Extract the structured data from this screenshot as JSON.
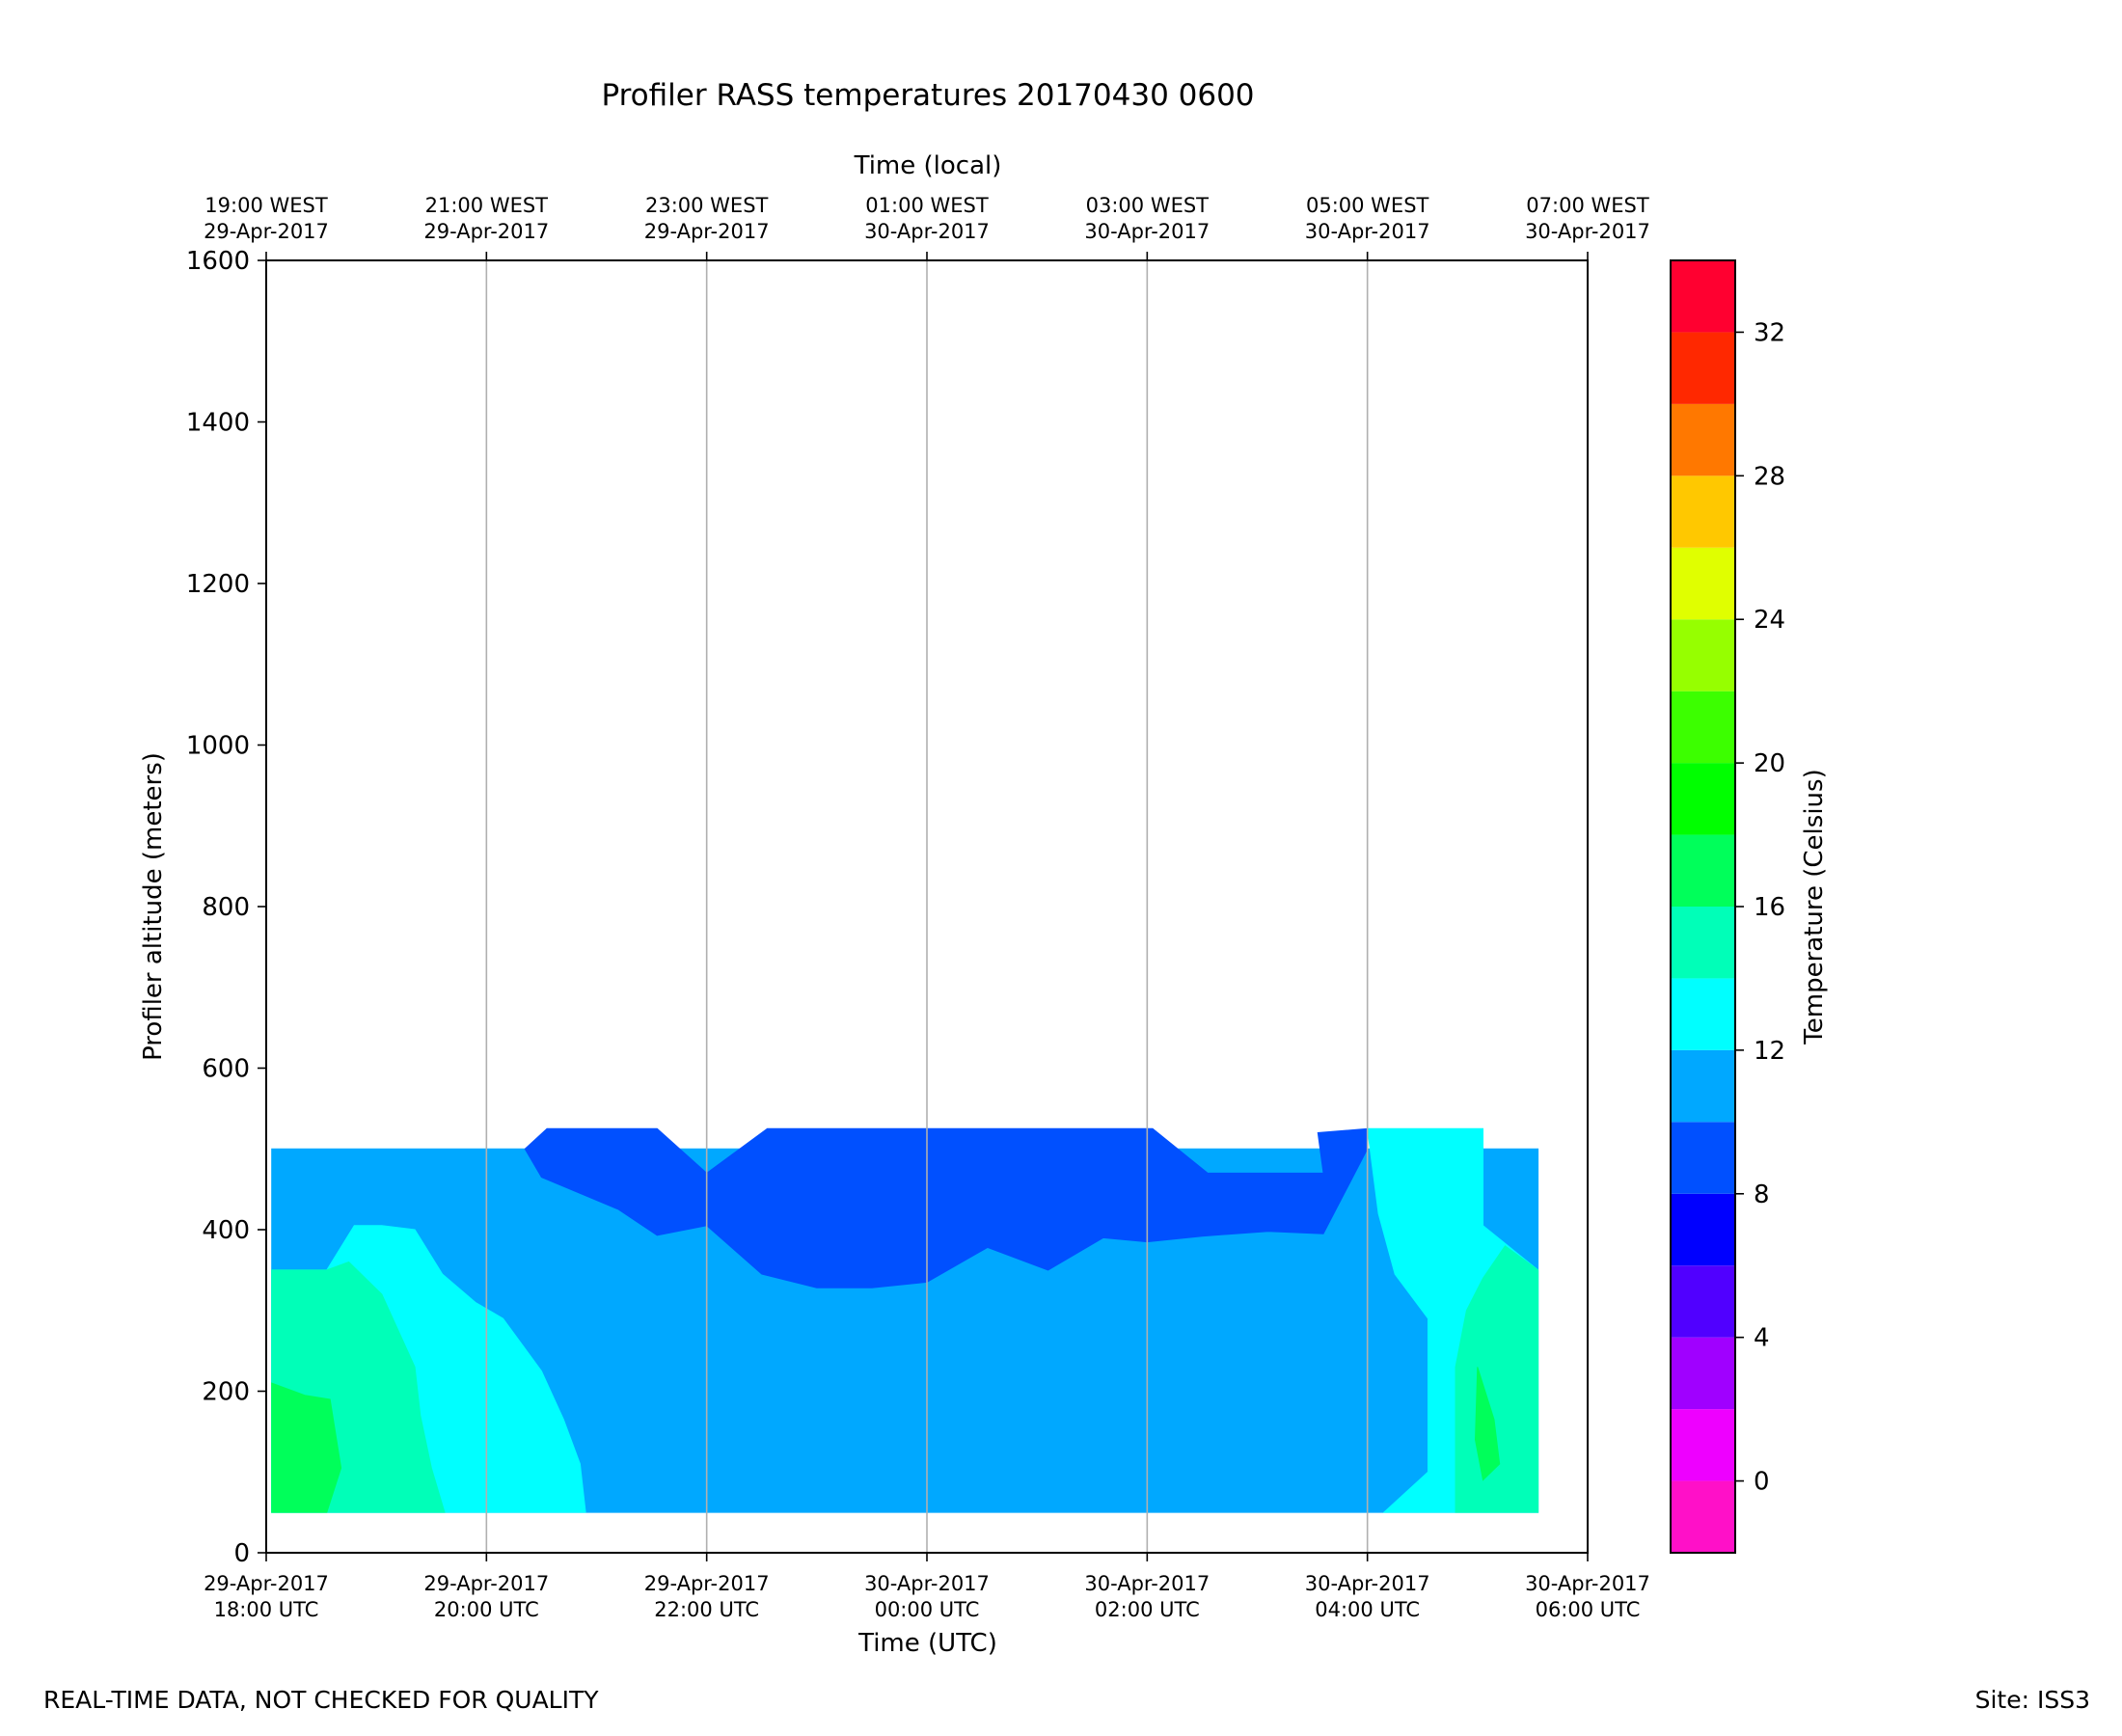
{
  "chart_data": {
    "type": "heatmap",
    "title": "Profiler RASS temperatures 20170430 0600",
    "xlabel": "Time (UTC)",
    "x2label": "Time (local)",
    "ylabel": "Profiler altitude (meters)",
    "grid": "vertical lines at x ticks",
    "x_range_hours": [
      0,
      12
    ],
    "ylim": [
      0,
      1600
    ],
    "x_ticks": [
      {
        "hour": 0,
        "line1": "29-Apr-2017",
        "line2": "18:00 UTC"
      },
      {
        "hour": 2,
        "line1": "29-Apr-2017",
        "line2": "20:00 UTC"
      },
      {
        "hour": 4,
        "line1": "29-Apr-2017",
        "line2": "22:00 UTC"
      },
      {
        "hour": 6,
        "line1": "30-Apr-2017",
        "line2": "00:00 UTC"
      },
      {
        "hour": 8,
        "line1": "30-Apr-2017",
        "line2": "02:00 UTC"
      },
      {
        "hour": 10,
        "line1": "30-Apr-2017",
        "line2": "04:00 UTC"
      },
      {
        "hour": 12,
        "line1": "30-Apr-2017",
        "line2": "06:00 UTC"
      }
    ],
    "x2_ticks": [
      {
        "hour": 0,
        "line1": "19:00 WEST",
        "line2": "29-Apr-2017"
      },
      {
        "hour": 2,
        "line1": "21:00 WEST",
        "line2": "29-Apr-2017"
      },
      {
        "hour": 4,
        "line1": "23:00 WEST",
        "line2": "29-Apr-2017"
      },
      {
        "hour": 6,
        "line1": "01:00 WEST",
        "line2": "30-Apr-2017"
      },
      {
        "hour": 8,
        "line1": "03:00 WEST",
        "line2": "30-Apr-2017"
      },
      {
        "hour": 10,
        "line1": "05:00 WEST",
        "line2": "30-Apr-2017"
      },
      {
        "hour": 12,
        "line1": "07:00 WEST",
        "line2": "30-Apr-2017"
      }
    ],
    "y_ticks": [
      0,
      200,
      400,
      600,
      800,
      1000,
      1200,
      1400,
      1600
    ],
    "colorbar": {
      "label": "Temperature (Celsius)",
      "range": [
        -2,
        34
      ],
      "ticks": [
        0,
        4,
        8,
        12,
        16,
        20,
        24,
        28,
        32
      ],
      "levels": [
        {
          "from": -2,
          "to": 0,
          "color": "#ff10c8"
        },
        {
          "from": 0,
          "to": 2,
          "color": "#ee00ff"
        },
        {
          "from": 2,
          "to": 4,
          "color": "#a000ff"
        },
        {
          "from": 4,
          "to": 6,
          "color": "#5000ff"
        },
        {
          "from": 6,
          "to": 8,
          "color": "#0000ff"
        },
        {
          "from": 8,
          "to": 10,
          "color": "#0050ff"
        },
        {
          "from": 10,
          "to": 12,
          "color": "#00a8ff"
        },
        {
          "from": 12,
          "to": 14,
          "color": "#00ffff"
        },
        {
          "from": 14,
          "to": 16,
          "color": "#00ffb8"
        },
        {
          "from": 16,
          "to": 18,
          "color": "#00ff5a"
        },
        {
          "from": 18,
          "to": 20,
          "color": "#00ff00"
        },
        {
          "from": 20,
          "to": 22,
          "color": "#3cff00"
        },
        {
          "from": 22,
          "to": 24,
          "color": "#96ff00"
        },
        {
          "from": 24,
          "to": 26,
          "color": "#e0ff00"
        },
        {
          "from": 26,
          "to": 28,
          "color": "#ffc800"
        },
        {
          "from": 28,
          "to": 30,
          "color": "#ff7800"
        },
        {
          "from": 30,
          "to": 32,
          "color": "#ff2800"
        },
        {
          "from": 32,
          "to": 34,
          "color": "#ff0030"
        }
      ]
    },
    "regions": [
      {
        "name": "band-10-12C",
        "temp_range": [
          10,
          12
        ],
        "points": [
          [
            0.05,
            50
          ],
          [
            11.55,
            50
          ],
          [
            11.55,
            500
          ],
          [
            0.05,
            500
          ]
        ]
      },
      {
        "name": "band-8-10C",
        "temp_range": [
          8,
          10
        ],
        "points": [
          [
            2.35,
            500
          ],
          [
            2.55,
            525
          ],
          [
            3.55,
            525
          ],
          [
            4.0,
            470
          ],
          [
            4.55,
            525
          ],
          [
            8.05,
            525
          ],
          [
            8.55,
            470
          ],
          [
            9.6,
            470
          ],
          [
            9.55,
            520
          ],
          [
            10.0,
            525
          ],
          [
            10.0,
            500
          ],
          [
            9.6,
            395
          ],
          [
            9.1,
            398
          ],
          [
            8.5,
            392
          ],
          [
            8.0,
            385
          ],
          [
            7.6,
            390
          ],
          [
            7.1,
            350
          ],
          [
            6.55,
            378
          ],
          [
            6.0,
            335
          ],
          [
            5.5,
            328
          ],
          [
            5.0,
            328
          ],
          [
            4.5,
            345
          ],
          [
            4.0,
            405
          ],
          [
            3.55,
            393
          ],
          [
            3.2,
            425
          ],
          [
            2.5,
            465
          ]
        ]
      },
      {
        "name": "band-12-14C-left",
        "temp_range": [
          12,
          14
        ],
        "points": [
          [
            0.05,
            50
          ],
          [
            2.9,
            50
          ],
          [
            2.85,
            110
          ],
          [
            2.7,
            165
          ],
          [
            2.5,
            225
          ],
          [
            2.15,
            290
          ],
          [
            1.9,
            310
          ],
          [
            1.6,
            345
          ],
          [
            1.35,
            400
          ],
          [
            1.05,
            405
          ],
          [
            0.8,
            405
          ],
          [
            0.55,
            350
          ],
          [
            0.05,
            350
          ]
        ]
      },
      {
        "name": "band-12-14C-right",
        "temp_range": [
          12,
          14
        ],
        "points": [
          [
            10.0,
            525
          ],
          [
            11.05,
            525
          ],
          [
            11.05,
            405
          ],
          [
            11.55,
            350
          ],
          [
            11.55,
            50
          ],
          [
            10.15,
            50
          ],
          [
            10.55,
            100
          ],
          [
            10.55,
            290
          ],
          [
            10.25,
            345
          ],
          [
            10.1,
            420
          ]
        ]
      },
      {
        "name": "band-14-16C-left",
        "temp_range": [
          14,
          16
        ],
        "points": [
          [
            0.05,
            50
          ],
          [
            1.62,
            50
          ],
          [
            1.5,
            105
          ],
          [
            1.4,
            170
          ],
          [
            1.35,
            230
          ],
          [
            1.05,
            320
          ],
          [
            0.75,
            360
          ],
          [
            0.55,
            350
          ],
          [
            0.05,
            350
          ]
        ]
      },
      {
        "name": "band-14-16C-right",
        "temp_range": [
          14,
          16
        ],
        "points": [
          [
            11.55,
            50
          ],
          [
            10.8,
            50
          ],
          [
            10.8,
            230
          ],
          [
            10.9,
            300
          ],
          [
            11.05,
            340
          ],
          [
            11.25,
            380
          ],
          [
            11.55,
            350
          ]
        ]
      },
      {
        "name": "band-16-18C-left",
        "temp_range": [
          16,
          18
        ],
        "points": [
          [
            0.05,
            50
          ],
          [
            0.55,
            50
          ],
          [
            0.68,
            105
          ],
          [
            0.58,
            190
          ],
          [
            0.35,
            195
          ],
          [
            0.05,
            210
          ]
        ]
      },
      {
        "name": "band-16-18C-right",
        "temp_range": [
          16,
          18
        ],
        "points": [
          [
            11.0,
            230
          ],
          [
            11.15,
            165
          ],
          [
            11.2,
            110
          ],
          [
            11.05,
            90
          ],
          [
            10.98,
            140
          ]
        ]
      }
    ]
  },
  "notes": {
    "quality_disclaimer": "REAL-TIME DATA, NOT CHECKED FOR QUALITY",
    "site": "Site: ISS3"
  }
}
